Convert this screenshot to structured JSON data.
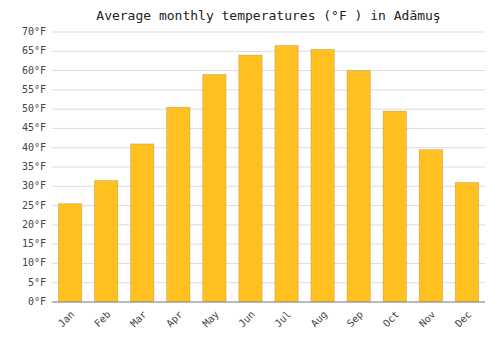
{
  "chart_data": {
    "type": "bar",
    "title": "Average monthly temperatures (°F ) in Adămuş",
    "categories": [
      "Jan",
      "Feb",
      "Mar",
      "Apr",
      "May",
      "Jun",
      "Jul",
      "Aug",
      "Sep",
      "Oct",
      "Nov",
      "Dec"
    ],
    "values": [
      25.5,
      31.5,
      41.0,
      50.5,
      59.0,
      64.0,
      66.5,
      65.5,
      60.0,
      49.5,
      39.5,
      31.0
    ],
    "color": "#FFC020",
    "ylim": [
      0,
      70
    ],
    "yticks": [
      {
        "value": 0,
        "label": "0°F"
      },
      {
        "value": 5,
        "label": "5°F"
      },
      {
        "value": 10,
        "label": "10°F"
      },
      {
        "value": 15,
        "label": "15°F"
      },
      {
        "value": 20,
        "label": "20°F"
      },
      {
        "value": 25,
        "label": "25°F"
      },
      {
        "value": 30,
        "label": "30°F"
      },
      {
        "value": 35,
        "label": "35°F"
      },
      {
        "value": 40,
        "label": "40°F"
      },
      {
        "value": 45,
        "label": "45°F"
      },
      {
        "value": 50,
        "label": "50°F"
      },
      {
        "value": 55,
        "label": "55°F"
      },
      {
        "value": 60,
        "label": "60°F"
      },
      {
        "value": 65,
        "label": "65°F"
      },
      {
        "value": 70,
        "label": "70°F"
      }
    ],
    "grid": true
  }
}
